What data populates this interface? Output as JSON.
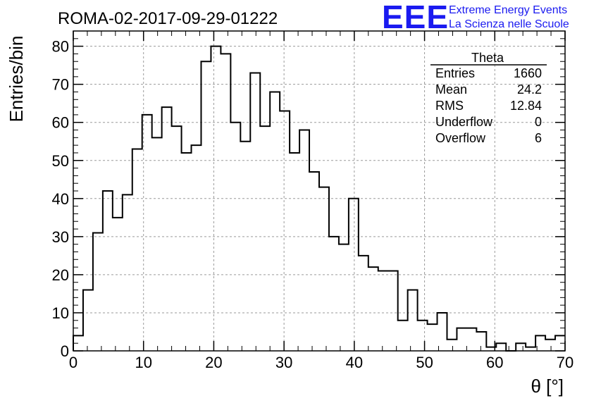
{
  "logo": {
    "mark": "EEE",
    "line1": "Extreme Energy Events",
    "line2": "La Scienza nelle Scuole"
  },
  "chart_data": {
    "type": "bar",
    "style": "step-histogram",
    "title": "ROMA-02-2017-09-29-01222",
    "xlabel": "θ [°]",
    "ylabel": "Entries/bin",
    "xlim": [
      0,
      70
    ],
    "ylim": [
      0,
      84
    ],
    "x_ticks": [
      0,
      10,
      20,
      30,
      40,
      50,
      60,
      70
    ],
    "y_ticks": [
      0,
      10,
      20,
      30,
      40,
      50,
      60,
      70,
      80
    ],
    "grid": true,
    "bin_width": 1.4,
    "values": [
      4,
      16,
      31,
      42,
      35,
      41,
      53,
      62,
      56,
      64,
      59,
      52,
      54,
      76,
      80,
      78,
      60,
      55,
      73,
      59,
      68,
      63,
      52,
      58,
      47,
      43,
      30,
      28,
      40,
      25,
      22,
      21,
      21,
      8,
      16,
      8,
      7,
      10,
      3,
      6,
      6,
      5,
      1,
      2,
      0,
      2,
      1,
      4,
      3,
      4
    ],
    "stats": {
      "name": "Theta",
      "rows": [
        {
          "label": "Entries",
          "value": "1660"
        },
        {
          "label": "Mean",
          "value": "24.2"
        },
        {
          "label": "RMS",
          "value": "12.84"
        },
        {
          "label": "Underflow",
          "value": "0"
        },
        {
          "label": "Overflow",
          "value": "6"
        }
      ]
    },
    "colors": {
      "line": "#000000",
      "grid": "#9a9a9a",
      "logo": "#1a1af0"
    }
  }
}
